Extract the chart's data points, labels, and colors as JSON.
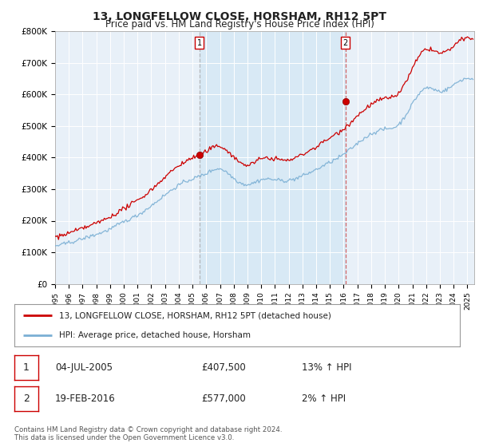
{
  "title": "13, LONGFELLOW CLOSE, HORSHAM, RH12 5PT",
  "subtitle": "Price paid vs. HM Land Registry's House Price Index (HPI)",
  "legend_line1": "13, LONGFELLOW CLOSE, HORSHAM, RH12 5PT (detached house)",
  "legend_line2": "HPI: Average price, detached house, Horsham",
  "footnote": "Contains HM Land Registry data © Crown copyright and database right 2024.\nThis data is licensed under the Open Government Licence v3.0.",
  "transaction1_date": "04-JUL-2005",
  "transaction1_price": "£407,500",
  "transaction1_hpi": "13% ↑ HPI",
  "transaction2_date": "19-FEB-2016",
  "transaction2_price": "£577,000",
  "transaction2_hpi": "2% ↑ HPI",
  "price_color": "#cc0000",
  "hpi_color": "#7aafd4",
  "shade_color": "#d6e8f5",
  "background_color": "#ffffff",
  "plot_bg_color": "#e8f0f8",
  "ylim": [
    0,
    800000
  ],
  "yticks": [
    0,
    100000,
    200000,
    300000,
    400000,
    500000,
    600000,
    700000,
    800000
  ],
  "ytick_labels": [
    "£0",
    "£100K",
    "£200K",
    "£300K",
    "£400K",
    "£500K",
    "£600K",
    "£700K",
    "£800K"
  ],
  "vline1_x": 2005.5,
  "vline2_x": 2016.12,
  "marker1_y": 407500,
  "marker2_y": 577000,
  "xmin": 1995.0,
  "xmax": 2025.5
}
